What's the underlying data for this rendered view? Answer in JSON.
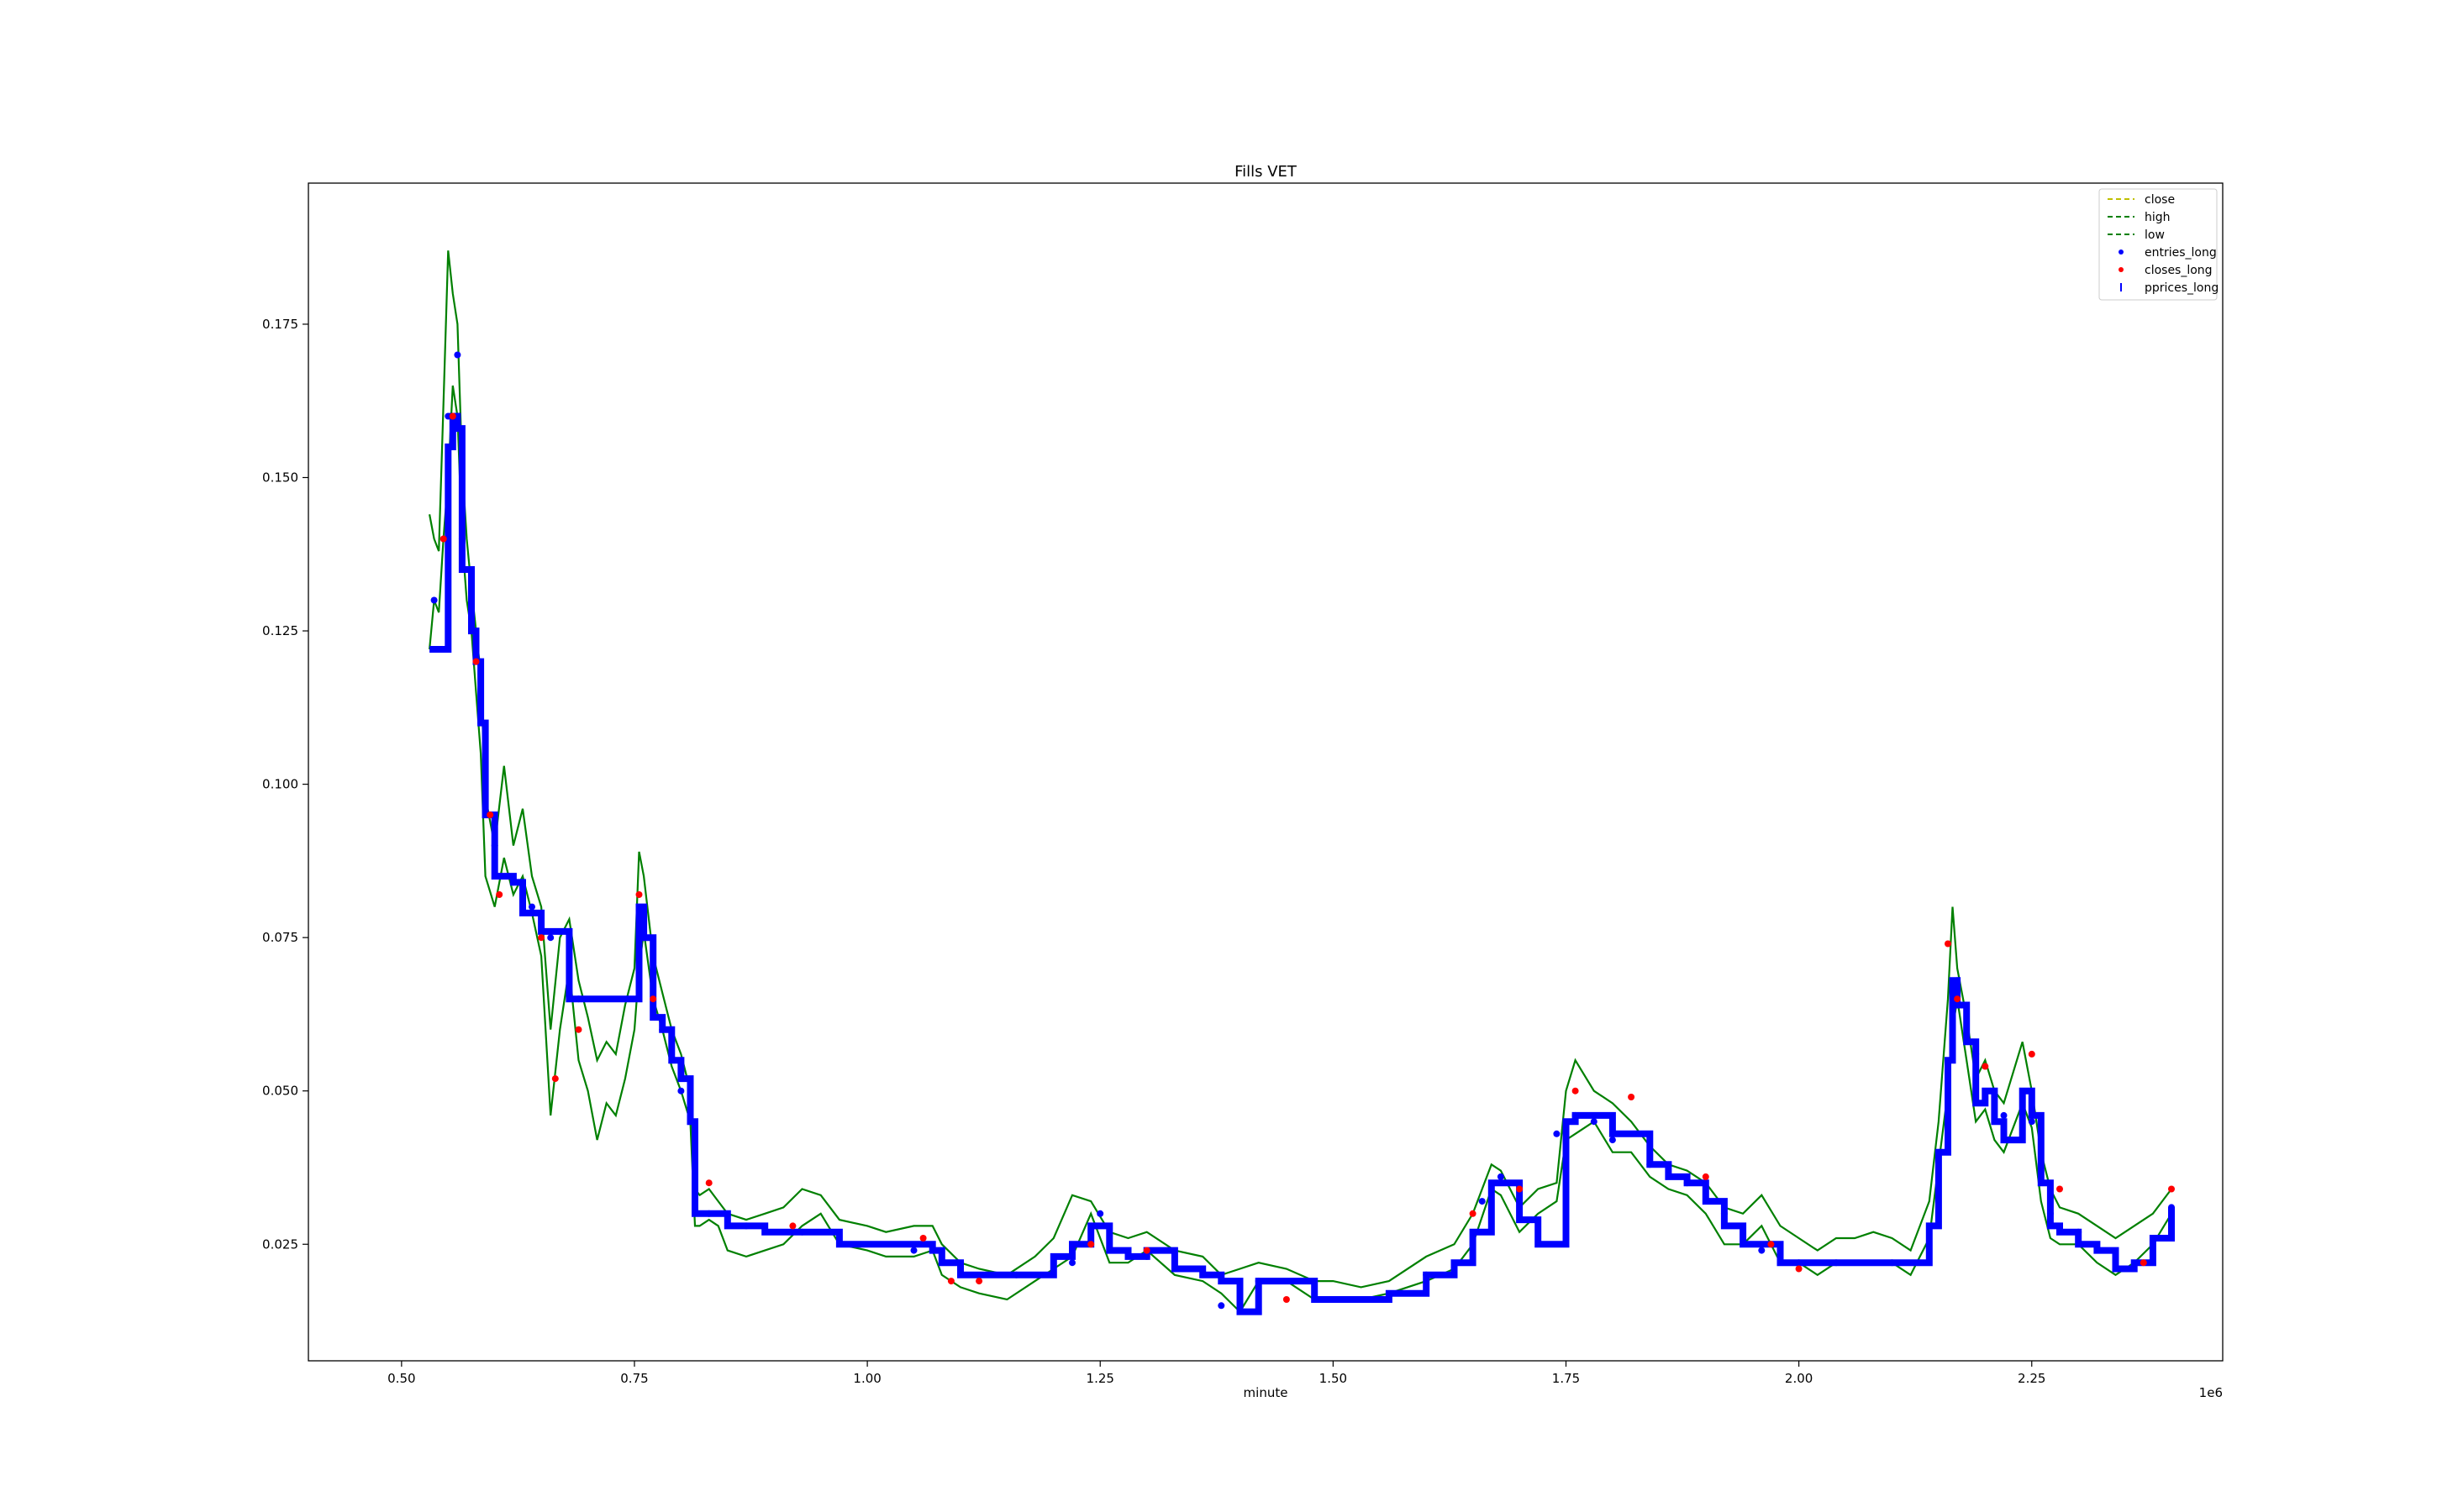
{
  "chart_data": {
    "type": "line",
    "title": "Fills VET",
    "xlabel": "minute",
    "x_offset_label": "1e6",
    "ylabel": "",
    "xlim": [
      0.4,
      2.455
    ],
    "ylim": [
      0.006,
      0.198
    ],
    "x_ticks": [
      {
        "value": 0.5,
        "label": "0.50"
      },
      {
        "value": 0.75,
        "label": "0.75"
      },
      {
        "value": 1.0,
        "label": "1.00"
      },
      {
        "value": 1.25,
        "label": "1.25"
      },
      {
        "value": 1.5,
        "label": "1.50"
      },
      {
        "value": 1.75,
        "label": "1.75"
      },
      {
        "value": 2.0,
        "label": "2.00"
      },
      {
        "value": 2.25,
        "label": "2.25"
      }
    ],
    "y_ticks": [
      {
        "value": 0.025,
        "label": "0.025"
      },
      {
        "value": 0.05,
        "label": "0.050"
      },
      {
        "value": 0.075,
        "label": "0.075"
      },
      {
        "value": 0.1,
        "label": "0.100"
      },
      {
        "value": 0.125,
        "label": "0.125"
      },
      {
        "value": 0.15,
        "label": "0.150"
      },
      {
        "value": 0.175,
        "label": "0.175"
      }
    ],
    "grid": false,
    "legend_position": "top-right",
    "colors": {
      "close": "#bfbf00",
      "high": "#008000",
      "low": "#008000",
      "entries_long": "#0000ff",
      "closes_long": "#ff0000",
      "pprices_long": "#0000ff"
    },
    "legend": [
      {
        "label": "close",
        "style": "dashed-line",
        "color": "#bfbf00"
      },
      {
        "label": "high",
        "style": "dashed-line",
        "color": "#008000"
      },
      {
        "label": "low",
        "style": "dashed-line",
        "color": "#008000"
      },
      {
        "label": "entries_long",
        "style": "dot",
        "color": "#0000ff"
      },
      {
        "label": "closes_long",
        "style": "dot",
        "color": "#ff0000"
      },
      {
        "label": "pprices_long",
        "style": "vline",
        "color": "#0000ff"
      }
    ],
    "series": [
      {
        "name": "low",
        "x": [
          0.53,
          0.535,
          0.54,
          0.545,
          0.55,
          0.555,
          0.56,
          0.565,
          0.57,
          0.575,
          0.58,
          0.585,
          0.59,
          0.6,
          0.61,
          0.62,
          0.63,
          0.64,
          0.65,
          0.66,
          0.67,
          0.68,
          0.69,
          0.7,
          0.71,
          0.72,
          0.73,
          0.74,
          0.75,
          0.755,
          0.76,
          0.77,
          0.78,
          0.79,
          0.8,
          0.81,
          0.815,
          0.82,
          0.83,
          0.84,
          0.85,
          0.87,
          0.89,
          0.91,
          0.93,
          0.95,
          0.97,
          1.0,
          1.02,
          1.05,
          1.07,
          1.08,
          1.1,
          1.12,
          1.15,
          1.18,
          1.2,
          1.22,
          1.24,
          1.26,
          1.28,
          1.3,
          1.33,
          1.36,
          1.38,
          1.4,
          1.42,
          1.45,
          1.48,
          1.5,
          1.53,
          1.56,
          1.6,
          1.63,
          1.65,
          1.67,
          1.68,
          1.7,
          1.72,
          1.74,
          1.75,
          1.76,
          1.78,
          1.8,
          1.82,
          1.84,
          1.86,
          1.88,
          1.9,
          1.92,
          1.94,
          1.96,
          1.98,
          2.0,
          2.02,
          2.04,
          2.06,
          2.08,
          2.1,
          2.12,
          2.14,
          2.15,
          2.16,
          2.165,
          2.17,
          2.18,
          2.19,
          2.2,
          2.21,
          2.22,
          2.24,
          2.25,
          2.26,
          2.27,
          2.28,
          2.3,
          2.32,
          2.34,
          2.36,
          2.38,
          2.4
        ],
        "values": [
          0.122,
          0.13,
          0.128,
          0.14,
          0.15,
          0.165,
          0.16,
          0.14,
          0.13,
          0.125,
          0.115,
          0.105,
          0.085,
          0.08,
          0.088,
          0.082,
          0.085,
          0.079,
          0.072,
          0.046,
          0.06,
          0.07,
          0.055,
          0.05,
          0.042,
          0.048,
          0.046,
          0.052,
          0.06,
          0.07,
          0.076,
          0.065,
          0.06,
          0.054,
          0.05,
          0.045,
          0.028,
          0.028,
          0.029,
          0.028,
          0.024,
          0.023,
          0.024,
          0.025,
          0.028,
          0.03,
          0.025,
          0.024,
          0.023,
          0.023,
          0.024,
          0.02,
          0.018,
          0.017,
          0.016,
          0.019,
          0.021,
          0.023,
          0.03,
          0.022,
          0.022,
          0.024,
          0.02,
          0.019,
          0.017,
          0.014,
          0.019,
          0.019,
          0.016,
          0.016,
          0.016,
          0.017,
          0.019,
          0.021,
          0.025,
          0.034,
          0.033,
          0.027,
          0.03,
          0.032,
          0.042,
          0.043,
          0.045,
          0.04,
          0.04,
          0.036,
          0.034,
          0.033,
          0.03,
          0.025,
          0.025,
          0.028,
          0.022,
          0.022,
          0.02,
          0.022,
          0.022,
          0.022,
          0.022,
          0.02,
          0.026,
          0.038,
          0.05,
          0.06,
          0.065,
          0.055,
          0.045,
          0.047,
          0.042,
          0.04,
          0.048,
          0.044,
          0.032,
          0.026,
          0.025,
          0.025,
          0.022,
          0.02,
          0.022,
          0.025,
          0.03
        ]
      },
      {
        "name": "high",
        "x": [
          0.53,
          0.535,
          0.54,
          0.545,
          0.55,
          0.555,
          0.56,
          0.565,
          0.57,
          0.575,
          0.58,
          0.585,
          0.59,
          0.6,
          0.61,
          0.62,
          0.63,
          0.64,
          0.65,
          0.66,
          0.67,
          0.68,
          0.69,
          0.7,
          0.71,
          0.72,
          0.73,
          0.74,
          0.75,
          0.755,
          0.76,
          0.77,
          0.78,
          0.79,
          0.8,
          0.81,
          0.815,
          0.82,
          0.83,
          0.84,
          0.85,
          0.87,
          0.89,
          0.91,
          0.93,
          0.95,
          0.97,
          1.0,
          1.02,
          1.05,
          1.07,
          1.08,
          1.1,
          1.12,
          1.15,
          1.18,
          1.2,
          1.22,
          1.24,
          1.26,
          1.28,
          1.3,
          1.33,
          1.36,
          1.38,
          1.4,
          1.42,
          1.45,
          1.48,
          1.5,
          1.53,
          1.56,
          1.6,
          1.63,
          1.65,
          1.67,
          1.68,
          1.7,
          1.72,
          1.74,
          1.75,
          1.76,
          1.78,
          1.8,
          1.82,
          1.84,
          1.86,
          1.88,
          1.9,
          1.92,
          1.94,
          1.96,
          1.98,
          2.0,
          2.02,
          2.04,
          2.06,
          2.08,
          2.1,
          2.12,
          2.14,
          2.15,
          2.16,
          2.165,
          2.17,
          2.18,
          2.19,
          2.2,
          2.21,
          2.22,
          2.24,
          2.25,
          2.26,
          2.27,
          2.28,
          2.3,
          2.32,
          2.34,
          2.36,
          2.38,
          2.4
        ],
        "values": [
          0.144,
          0.14,
          0.138,
          0.162,
          0.187,
          0.18,
          0.175,
          0.152,
          0.14,
          0.132,
          0.125,
          0.118,
          0.098,
          0.09,
          0.103,
          0.09,
          0.096,
          0.085,
          0.08,
          0.06,
          0.075,
          0.078,
          0.068,
          0.062,
          0.055,
          0.058,
          0.056,
          0.064,
          0.07,
          0.089,
          0.085,
          0.072,
          0.066,
          0.06,
          0.056,
          0.05,
          0.034,
          0.033,
          0.034,
          0.032,
          0.03,
          0.029,
          0.03,
          0.031,
          0.034,
          0.033,
          0.029,
          0.028,
          0.027,
          0.028,
          0.028,
          0.025,
          0.022,
          0.021,
          0.02,
          0.023,
          0.026,
          0.033,
          0.032,
          0.027,
          0.026,
          0.027,
          0.024,
          0.023,
          0.02,
          0.021,
          0.022,
          0.021,
          0.019,
          0.019,
          0.018,
          0.019,
          0.023,
          0.025,
          0.03,
          0.038,
          0.037,
          0.031,
          0.034,
          0.035,
          0.05,
          0.055,
          0.05,
          0.048,
          0.045,
          0.041,
          0.038,
          0.037,
          0.035,
          0.031,
          0.03,
          0.033,
          0.028,
          0.026,
          0.024,
          0.026,
          0.026,
          0.027,
          0.026,
          0.024,
          0.032,
          0.045,
          0.065,
          0.08,
          0.07,
          0.062,
          0.052,
          0.055,
          0.05,
          0.048,
          0.058,
          0.05,
          0.04,
          0.034,
          0.031,
          0.03,
          0.028,
          0.026,
          0.028,
          0.03,
          0.034
        ]
      },
      {
        "name": "pprices_long",
        "x": [
          0.53,
          0.535,
          0.54,
          0.545,
          0.55,
          0.555,
          0.56,
          0.565,
          0.57,
          0.575,
          0.58,
          0.585,
          0.59,
          0.6,
          0.61,
          0.62,
          0.63,
          0.64,
          0.65,
          0.66,
          0.67,
          0.68,
          0.69,
          0.7,
          0.71,
          0.72,
          0.73,
          0.74,
          0.75,
          0.755,
          0.76,
          0.77,
          0.78,
          0.79,
          0.8,
          0.81,
          0.815,
          0.82,
          0.83,
          0.84,
          0.85,
          0.87,
          0.89,
          0.91,
          0.93,
          0.95,
          0.97,
          1.0,
          1.02,
          1.05,
          1.07,
          1.08,
          1.1,
          1.12,
          1.15,
          1.18,
          1.2,
          1.22,
          1.24,
          1.26,
          1.28,
          1.3,
          1.33,
          1.36,
          1.38,
          1.4,
          1.42,
          1.45,
          1.48,
          1.5,
          1.53,
          1.56,
          1.6,
          1.63,
          1.65,
          1.67,
          1.68,
          1.7,
          1.72,
          1.74,
          1.75,
          1.76,
          1.78,
          1.8,
          1.82,
          1.84,
          1.86,
          1.88,
          1.9,
          1.92,
          1.94,
          1.96,
          1.98,
          2.0,
          2.02,
          2.04,
          2.06,
          2.08,
          2.1,
          2.12,
          2.14,
          2.15,
          2.16,
          2.165,
          2.17,
          2.18,
          2.19,
          2.2,
          2.21,
          2.22,
          2.24,
          2.25,
          2.26,
          2.27,
          2.28,
          2.3,
          2.32,
          2.34,
          2.36,
          2.38,
          2.4
        ],
        "values": [
          0.122,
          0.122,
          0.122,
          0.122,
          0.155,
          0.16,
          0.158,
          0.135,
          0.135,
          0.125,
          0.12,
          0.11,
          0.095,
          0.085,
          0.085,
          0.084,
          0.079,
          0.079,
          0.076,
          0.076,
          0.076,
          0.065,
          0.065,
          0.065,
          0.065,
          0.065,
          0.065,
          0.065,
          0.065,
          0.08,
          0.075,
          0.062,
          0.06,
          0.055,
          0.052,
          0.045,
          0.03,
          0.03,
          0.03,
          0.03,
          0.028,
          0.028,
          0.027,
          0.027,
          0.027,
          0.027,
          0.025,
          0.025,
          0.025,
          0.025,
          0.024,
          0.022,
          0.02,
          0.02,
          0.02,
          0.02,
          0.023,
          0.025,
          0.028,
          0.024,
          0.023,
          0.024,
          0.021,
          0.02,
          0.019,
          0.014,
          0.019,
          0.019,
          0.016,
          0.016,
          0.016,
          0.017,
          0.02,
          0.022,
          0.027,
          0.035,
          0.035,
          0.029,
          0.025,
          0.025,
          0.045,
          0.046,
          0.046,
          0.043,
          0.043,
          0.038,
          0.036,
          0.035,
          0.032,
          0.028,
          0.025,
          0.025,
          0.022,
          0.022,
          0.022,
          0.022,
          0.022,
          0.022,
          0.022,
          0.022,
          0.028,
          0.04,
          0.055,
          0.068,
          0.064,
          0.058,
          0.048,
          0.05,
          0.045,
          0.042,
          0.05,
          0.046,
          0.035,
          0.028,
          0.027,
          0.025,
          0.024,
          0.021,
          0.022,
          0.026,
          0.031
        ]
      },
      {
        "name": "entries_long",
        "x": [
          0.535,
          0.55,
          0.56,
          0.565,
          0.575,
          0.585,
          0.6,
          0.62,
          0.64,
          0.66,
          0.69,
          0.76,
          0.78,
          0.8,
          0.81,
          0.83,
          0.87,
          0.93,
          1.05,
          1.16,
          1.22,
          1.25,
          1.3,
          1.38,
          1.42,
          1.5,
          1.6,
          1.66,
          1.68,
          1.74,
          1.76,
          1.78,
          1.8,
          1.84,
          1.88,
          1.92,
          1.96,
          2.0,
          2.04,
          2.1,
          2.15,
          2.16,
          2.17,
          2.19,
          2.22,
          2.25,
          2.27,
          2.3,
          2.34,
          2.4
        ],
        "values": [
          0.13,
          0.16,
          0.17,
          0.14,
          0.125,
          0.11,
          0.09,
          0.084,
          0.08,
          0.075,
          0.065,
          0.078,
          0.06,
          0.05,
          0.045,
          0.03,
          0.028,
          0.027,
          0.024,
          0.02,
          0.022,
          0.03,
          0.023,
          0.015,
          0.019,
          0.016,
          0.02,
          0.032,
          0.036,
          0.043,
          0.046,
          0.045,
          0.042,
          0.038,
          0.035,
          0.03,
          0.024,
          0.022,
          0.022,
          0.022,
          0.04,
          0.052,
          0.068,
          0.056,
          0.046,
          0.045,
          0.03,
          0.027,
          0.021,
          0.031
        ]
      },
      {
        "name": "closes_long",
        "x": [
          0.545,
          0.555,
          0.58,
          0.595,
          0.605,
          0.65,
          0.665,
          0.69,
          0.755,
          0.77,
          0.83,
          0.92,
          1.06,
          1.09,
          1.12,
          1.24,
          1.3,
          1.45,
          1.65,
          1.7,
          1.76,
          1.82,
          1.9,
          1.97,
          2.0,
          2.16,
          2.17,
          2.2,
          2.25,
          2.28,
          2.37,
          2.4
        ],
        "values": [
          0.14,
          0.16,
          0.12,
          0.095,
          0.082,
          0.075,
          0.052,
          0.06,
          0.082,
          0.065,
          0.035,
          0.028,
          0.026,
          0.019,
          0.019,
          0.025,
          0.024,
          0.016,
          0.03,
          0.034,
          0.05,
          0.049,
          0.036,
          0.025,
          0.021,
          0.074,
          0.065,
          0.054,
          0.056,
          0.034,
          0.022,
          0.034
        ]
      }
    ]
  }
}
